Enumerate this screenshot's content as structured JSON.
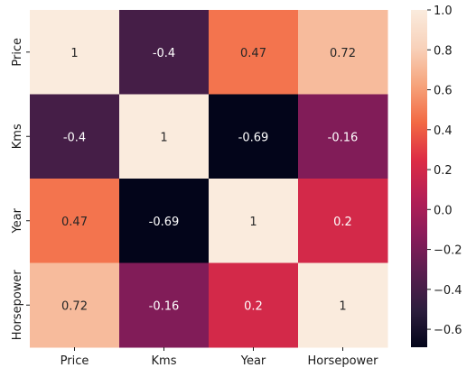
{
  "chart_data": {
    "type": "heatmap",
    "title": "",
    "xlabel": "",
    "ylabel": "",
    "x_categories": [
      "Price",
      "Kms",
      "Year",
      "Horsepower"
    ],
    "y_categories": [
      "Price",
      "Kms",
      "Year",
      "Horsepower"
    ],
    "values": [
      [
        1,
        -0.4,
        0.47,
        0.72
      ],
      [
        -0.4,
        1,
        -0.69,
        -0.16
      ],
      [
        0.47,
        -0.69,
        1,
        0.2
      ],
      [
        0.72,
        -0.16,
        0.2,
        1
      ]
    ],
    "cell_labels": [
      [
        "1",
        "-0.4",
        "0.47",
        "0.72"
      ],
      [
        "-0.4",
        "1",
        "-0.69",
        "-0.16"
      ],
      [
        "0.47",
        "-0.69",
        "1",
        "0.2"
      ],
      [
        "0.72",
        "-0.16",
        "0.2",
        "1"
      ]
    ],
    "colorbar": {
      "range": [
        -0.69,
        1.0
      ],
      "ticks": [
        1.0,
        0.8,
        0.6,
        0.4,
        0.2,
        0.0,
        -0.2,
        -0.4,
        -0.6
      ],
      "tick_labels": [
        "1.0",
        "0.8",
        "0.6",
        "0.4",
        "0.2",
        "0.0",
        "−0.2",
        "−0.4",
        "−0.6"
      ],
      "colormap": "rocket",
      "colormap_stops": [
        "#03051a",
        "#2d1e3e",
        "#5a1e4f",
        "#8a1c5a",
        "#b51f56",
        "#dd2c45",
        "#f26a44",
        "#f6a47c",
        "#f8d2bb",
        "#faebdd"
      ]
    },
    "legend": "colorbar-right",
    "grid": false
  }
}
